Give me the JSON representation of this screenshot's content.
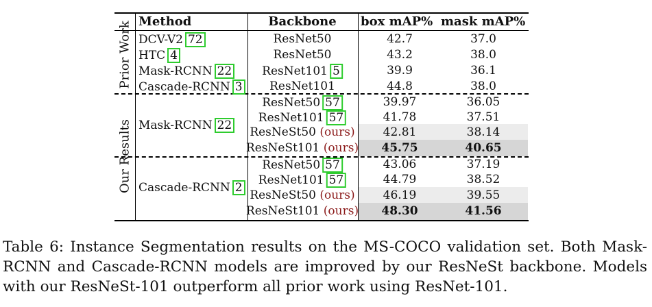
{
  "colors": {
    "shade_light": "#ececec",
    "shade_dark": "#d6d6d6",
    "ref_box": "#2ecc2e",
    "ours": "#8b1a1a"
  },
  "headers": {
    "method": "Method",
    "backbone": "Backbone",
    "box": "box mAP%",
    "mask": "mask mAP%"
  },
  "groups": {
    "prior": "Prior Work",
    "ours": "Our Results"
  },
  "prior_rows": [
    {
      "method": "DCV-V2",
      "method_ref": "72",
      "backbone": "ResNet50",
      "box": "42.7",
      "mask": "37.0"
    },
    {
      "method": "HTC",
      "method_ref": "4",
      "backbone": "ResNet50",
      "box": "43.2",
      "mask": "38.0"
    },
    {
      "method": "Mask-RCNN",
      "method_ref": "22",
      "backbone": "ResNet101",
      "backbone_ref": "5",
      "box": "39.9",
      "mask": "36.1"
    },
    {
      "method": "Cascade-RCNN",
      "method_ref": "3",
      "backbone": "ResNet101",
      "box": "44.8",
      "mask": "38.0"
    }
  ],
  "mask_rcnn": {
    "method": "Mask-RCNN",
    "method_ref": "22",
    "rows": [
      {
        "backbone": "ResNet50",
        "backbone_ref": "57",
        "box": "39.97",
        "mask": "36.05"
      },
      {
        "backbone": "ResNet101",
        "backbone_ref": "57",
        "box": "41.78",
        "mask": "37.51"
      },
      {
        "backbone": "ResNeSt50",
        "ours": "(ours)",
        "box": "42.81",
        "mask": "38.14"
      },
      {
        "backbone": "ResNeSt101",
        "ours": "(ours)",
        "box": "45.75",
        "mask": "40.65"
      }
    ]
  },
  "cascade_rcnn": {
    "method": "Cascade-RCNN",
    "method_ref": "2",
    "rows": [
      {
        "backbone": "ResNet50",
        "backbone_ref": "57",
        "box": "43.06",
        "mask": "37.19"
      },
      {
        "backbone": "ResNet101",
        "backbone_ref": "57",
        "box": "44.79",
        "mask": "38.52"
      },
      {
        "backbone": "ResNeSt50",
        "ours": "(ours)",
        "box": "46.19",
        "mask": "39.55"
      },
      {
        "backbone": "ResNeSt101",
        "ours": "(ours)",
        "box": "48.30",
        "mask": "41.56"
      }
    ]
  },
  "caption": "Table 6: Instance Segmentation results on the MS-COCO validation set. Both Mask-RCNN and Cascade-RCNN models are improved by our ResNeSt backbone. Models with our ResNeSt-101 outperform all prior work using ResNet-101."
}
